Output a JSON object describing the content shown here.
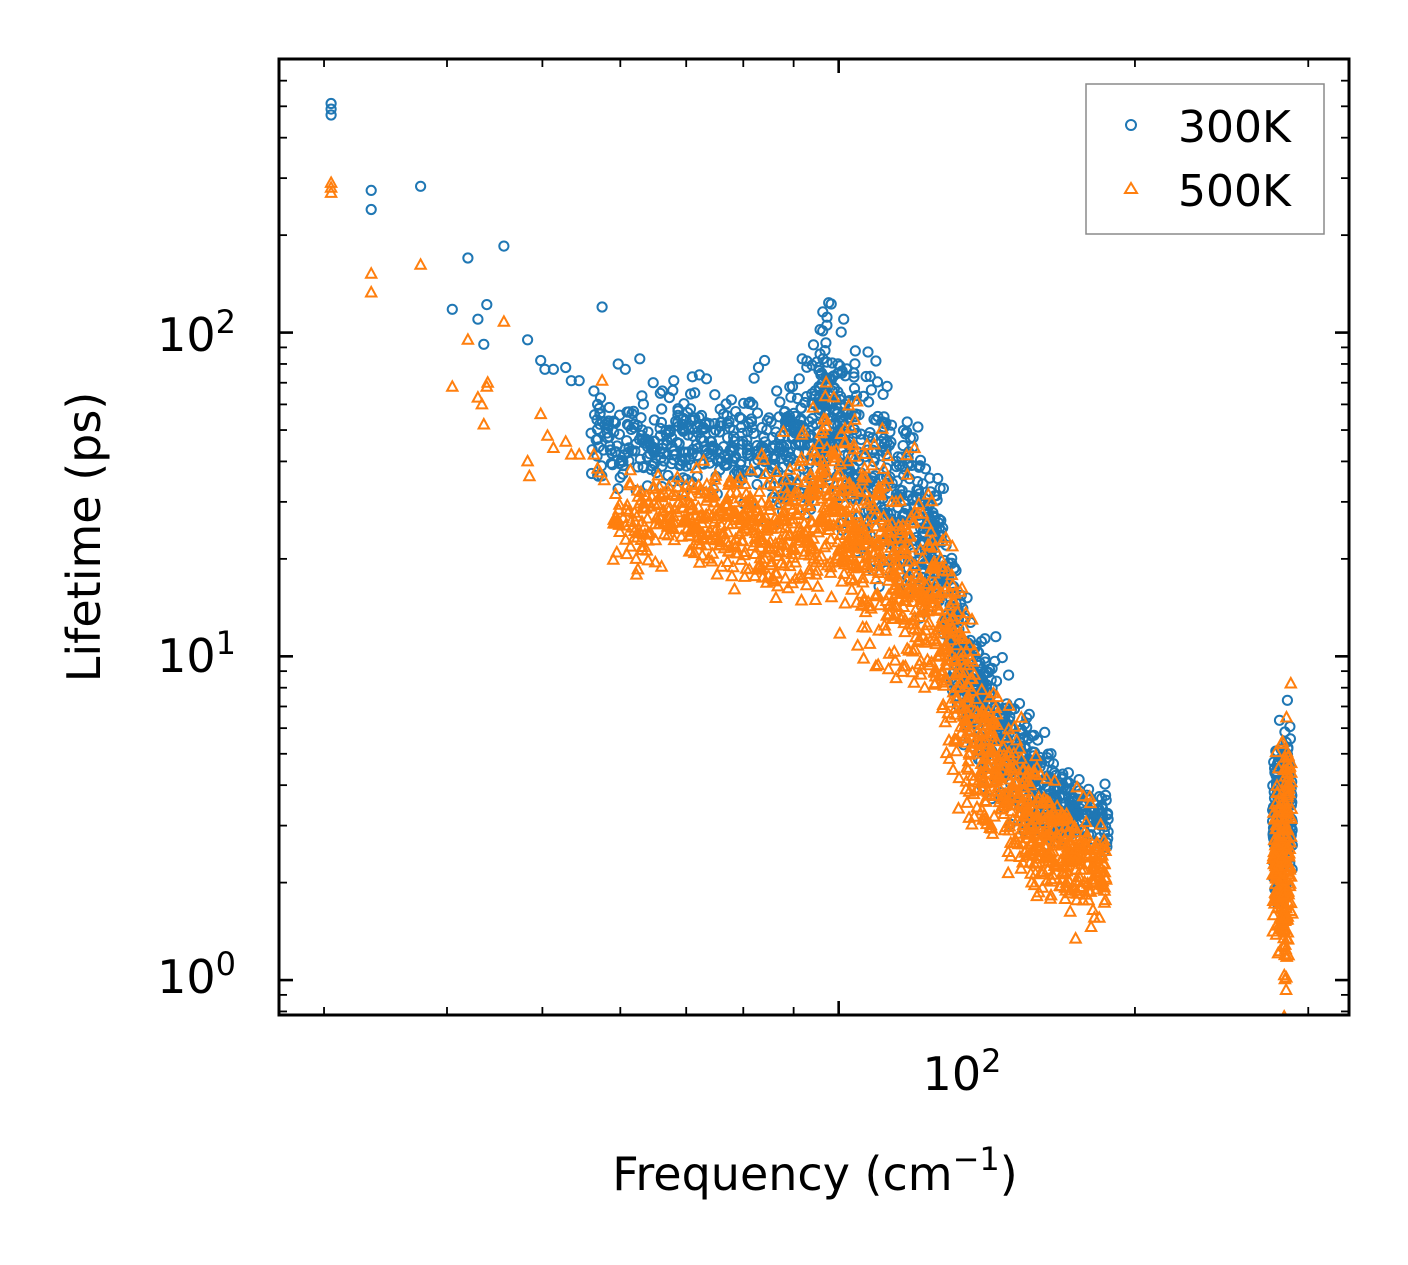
{
  "chart_data": {
    "type": "scatter",
    "title": "",
    "xlabel": "Frequency (cm",
    "xlabel_sup": "−1",
    "xlabel_end": ")",
    "ylabel": "Lifetime (ps)",
    "xscale": "log",
    "yscale": "log",
    "xlim": [
      27,
      330
    ],
    "ylim": [
      0.78,
      700
    ],
    "x_ticks": [
      {
        "value": 100,
        "base": "10",
        "exp": "2"
      }
    ],
    "y_ticks": [
      {
        "value": 1,
        "base": "10",
        "exp": "0"
      },
      {
        "value": 10,
        "base": "10",
        "exp": "1"
      },
      {
        "value": 100,
        "base": "10",
        "exp": "2"
      }
    ],
    "legend": {
      "position": "top-right"
    },
    "series": [
      {
        "name": "300K",
        "color": "#1f77b4",
        "marker": "circle",
        "points": [
          [
            30.5,
            510
          ],
          [
            30.5,
            490
          ],
          [
            30.5,
            470
          ],
          [
            33.5,
            275
          ],
          [
            33.5,
            240
          ],
          [
            37.6,
            283
          ],
          [
            40.5,
            118
          ],
          [
            42.0,
            170
          ],
          [
            43.0,
            110
          ],
          [
            43.6,
            92
          ],
          [
            43.9,
            122
          ],
          [
            45.7,
            185
          ],
          [
            48.3,
            95
          ],
          [
            49.8,
            82
          ],
          [
            50.3,
            77
          ],
          [
            51.3,
            77
          ],
          [
            52.8,
            78
          ],
          [
            53.5,
            71
          ],
          [
            54.5,
            71
          ],
          [
            56.4,
            66
          ],
          [
            56.9,
            60
          ],
          [
            57.2,
            56
          ],
          [
            57.5,
            120
          ],
          [
            59.7,
            80
          ],
          [
            60.7,
            77
          ],
          [
            62.8,
            83
          ],
          [
            64.8,
            70
          ],
          [
            66.2,
            66
          ],
          [
            67.3,
            63
          ],
          [
            68.0,
            71
          ],
          [
            71.0,
            73
          ],
          [
            72.2,
            74
          ],
          [
            73.4,
            72
          ],
          [
            75.8,
            58
          ],
          [
            77.8,
            62
          ],
          [
            78.6,
            57
          ],
          [
            81.3,
            61
          ],
          [
            82.9,
            78
          ],
          [
            84.1,
            82
          ],
          [
            86.5,
            66
          ],
          [
            89.2,
            68
          ],
          [
            91.2,
            72
          ],
          [
            96.4,
            83
          ],
          [
            97.3,
            81
          ],
          [
            98.5,
            66
          ],
          [
            101.5,
            60
          ],
          [
            103.6,
            75
          ]
        ],
        "band": [
          [
            55.6,
            45,
            0.12
          ],
          [
            61.0,
            46,
            0.13
          ],
          [
            66.0,
            46,
            0.13
          ],
          [
            70.0,
            46,
            0.14
          ],
          [
            75.0,
            46,
            0.14
          ],
          [
            80.0,
            44,
            0.16
          ],
          [
            86.0,
            42,
            0.18
          ],
          [
            90.0,
            45,
            0.2
          ],
          [
            94.0,
            50,
            0.24
          ],
          [
            97.0,
            57,
            0.28
          ],
          [
            100.0,
            52,
            0.28
          ],
          [
            103.0,
            42,
            0.3
          ],
          [
            107.0,
            37,
            0.3
          ],
          [
            111.0,
            35,
            0.28
          ],
          [
            115.0,
            30,
            0.26
          ],
          [
            119.0,
            28,
            0.25
          ],
          [
            123.0,
            24,
            0.25
          ],
          [
            127.0,
            21,
            0.25
          ],
          [
            131.0,
            12,
            0.25
          ],
          [
            135.0,
            8.5,
            0.22
          ],
          [
            139.0,
            7.6,
            0.2
          ],
          [
            143.0,
            6.3,
            0.2
          ],
          [
            148.0,
            5.2,
            0.18
          ],
          [
            153.0,
            4.9,
            0.18
          ],
          [
            158.0,
            4.2,
            0.16
          ],
          [
            164.0,
            3.7,
            0.14
          ],
          [
            170.0,
            3.4,
            0.12
          ],
          [
            178.0,
            3.2,
            0.1
          ],
          [
            188.0,
            3.0,
            0.1
          ],
          [
            278.0,
            3.2,
            0.2
          ],
          [
            283.0,
            3.2,
            0.22
          ],
          [
            287.0,
            3.5,
            0.24
          ]
        ]
      },
      {
        "name": "500K",
        "color": "#ff7f0e",
        "marker": "triangle",
        "points": [
          [
            30.5,
            290
          ],
          [
            30.5,
            280
          ],
          [
            30.5,
            270
          ],
          [
            33.5,
            152
          ],
          [
            33.5,
            133
          ],
          [
            37.6,
            162
          ],
          [
            40.5,
            68
          ],
          [
            42.0,
            95
          ],
          [
            43.0,
            63
          ],
          [
            43.4,
            60
          ],
          [
            43.6,
            52
          ],
          [
            43.9,
            68
          ],
          [
            44.0,
            70
          ],
          [
            45.7,
            108
          ],
          [
            48.3,
            40
          ],
          [
            48.5,
            36
          ],
          [
            49.8,
            56
          ],
          [
            50.6,
            48
          ],
          [
            51.3,
            44
          ],
          [
            52.8,
            46
          ],
          [
            53.5,
            42
          ],
          [
            54.5,
            42
          ],
          [
            56.4,
            42
          ],
          [
            56.9,
            38
          ],
          [
            57.2,
            37
          ],
          [
            57.5,
            71
          ],
          [
            57.8,
            35
          ],
          [
            59.7,
            26
          ],
          [
            61.5,
            26
          ],
          [
            62.5,
            24
          ],
          [
            64.5,
            29
          ],
          [
            66.2,
            28
          ],
          [
            68.0,
            26
          ],
          [
            71.0,
            25
          ],
          [
            73.4,
            22
          ],
          [
            75.8,
            22
          ],
          [
            78.6,
            23
          ],
          [
            80.3,
            21
          ],
          [
            82.9,
            19
          ],
          [
            83.7,
            17.5
          ],
          [
            84.1,
            20
          ],
          [
            86.5,
            18
          ],
          [
            89.2,
            19
          ],
          [
            91.2,
            17.5
          ],
          [
            96.4,
            50
          ],
          [
            97.3,
            44
          ],
          [
            103.6,
            45
          ]
        ],
        "band": [
          [
            59.0,
            26,
            0.13
          ],
          [
            64.0,
            27,
            0.14
          ],
          [
            69.0,
            27,
            0.14
          ],
          [
            73.0,
            27,
            0.15
          ],
          [
            77.0,
            26,
            0.15
          ],
          [
            81.0,
            25,
            0.16
          ],
          [
            85.0,
            24,
            0.18
          ],
          [
            89.0,
            25,
            0.22
          ],
          [
            93.0,
            28,
            0.26
          ],
          [
            96.5,
            33,
            0.3
          ],
          [
            100.0,
            28,
            0.32
          ],
          [
            103.0,
            24,
            0.34
          ],
          [
            106.0,
            22,
            0.34
          ],
          [
            110.0,
            21,
            0.32
          ],
          [
            114.0,
            18,
            0.3
          ],
          [
            118.0,
            16,
            0.3
          ],
          [
            122.0,
            15,
            0.3
          ],
          [
            126.0,
            14,
            0.3
          ],
          [
            130.0,
            11,
            0.32
          ],
          [
            134.0,
            7.5,
            0.3
          ],
          [
            138.0,
            5.5,
            0.28
          ],
          [
            142.0,
            4.8,
            0.24
          ],
          [
            147.0,
            3.9,
            0.22
          ],
          [
            152.0,
            3.7,
            0.22
          ],
          [
            157.0,
            3.0,
            0.2
          ],
          [
            162.0,
            2.8,
            0.18
          ],
          [
            168.0,
            2.6,
            0.18
          ],
          [
            173.0,
            2.4,
            0.18
          ],
          [
            180.0,
            2.3,
            0.18
          ],
          [
            187.0,
            2.1,
            0.12
          ],
          [
            278.0,
            2.5,
            0.2
          ],
          [
            283.0,
            2.1,
            0.4
          ],
          [
            287.0,
            2.4,
            0.35
          ]
        ]
      }
    ]
  }
}
